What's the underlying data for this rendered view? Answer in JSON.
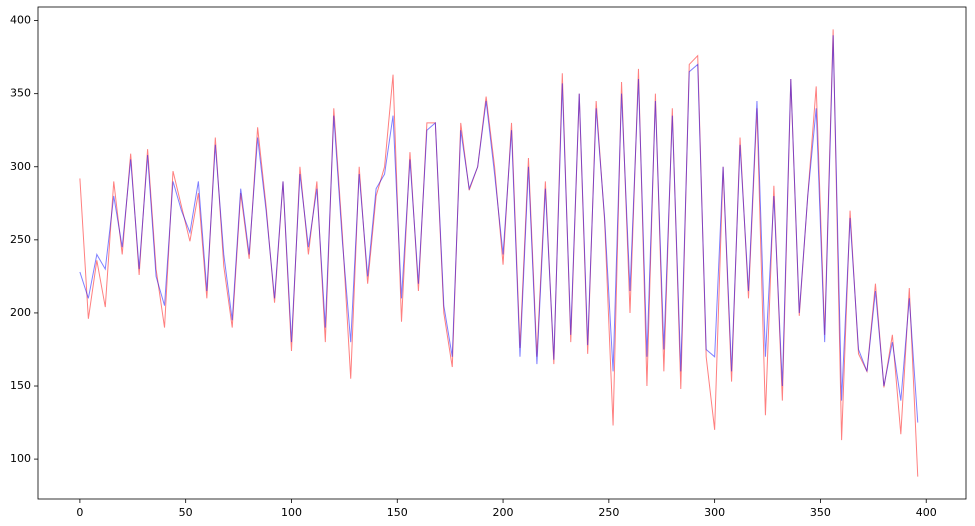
{
  "chart_data": {
    "type": "line",
    "x": [
      0,
      4,
      8,
      12,
      16,
      20,
      24,
      28,
      32,
      36,
      40,
      44,
      48,
      52,
      56,
      60,
      64,
      68,
      72,
      76,
      80,
      84,
      88,
      92,
      96,
      100,
      104,
      108,
      112,
      116,
      120,
      124,
      128,
      132,
      136,
      140,
      144,
      148,
      152,
      156,
      160,
      164,
      168,
      172,
      176,
      180,
      184,
      188,
      192,
      196,
      200,
      204,
      208,
      212,
      216,
      220,
      224,
      228,
      232,
      236,
      240,
      244,
      248,
      252,
      256,
      260,
      264,
      268,
      272,
      276,
      280,
      284,
      288,
      292,
      296,
      300,
      304,
      308,
      312,
      316,
      320,
      324,
      328,
      332,
      336,
      340,
      344,
      348,
      352,
      356,
      360,
      364,
      368,
      372,
      376,
      380,
      384,
      388,
      392,
      396
    ],
    "series": [
      {
        "color": "#ff0000",
        "alpha": 0.5,
        "values": [
          292,
          196,
          236,
          204,
          290,
          240,
          309,
          226,
          312,
          230,
          190,
          297,
          273,
          249,
          282,
          210,
          320,
          232,
          190,
          282,
          237,
          327,
          273,
          207,
          290,
          174,
          300,
          240,
          290,
          180,
          340,
          255,
          155,
          300,
          220,
          280,
          300,
          363,
          194,
          310,
          215,
          330,
          330,
          200,
          163,
          330,
          284,
          300,
          348,
          300,
          233,
          330,
          176,
          306,
          170,
          290,
          165,
          364,
          180,
          350,
          172,
          345,
          263,
          123,
          358,
          200,
          367,
          150,
          350,
          160,
          340,
          148,
          370,
          376,
          170,
          120,
          300,
          153,
          320,
          210,
          340,
          130,
          287,
          140,
          360,
          198,
          280,
          355,
          185,
          394,
          113,
          270,
          172,
          160,
          220,
          149,
          185,
          117,
          217,
          88
        ]
      },
      {
        "color": "#0000ff",
        "alpha": 0.5,
        "values": [
          228,
          210,
          240,
          230,
          280,
          245,
          305,
          230,
          308,
          225,
          205,
          290,
          270,
          255,
          290,
          215,
          315,
          240,
          195,
          285,
          240,
          320,
          270,
          210,
          290,
          180,
          295,
          245,
          285,
          190,
          335,
          250,
          180,
          295,
          225,
          285,
          295,
          335,
          210,
          305,
          220,
          325,
          330,
          205,
          170,
          325,
          285,
          300,
          345,
          295,
          240,
          325,
          170,
          300,
          165,
          285,
          168,
          357,
          185,
          350,
          178,
          340,
          265,
          160,
          350,
          215,
          360,
          170,
          345,
          175,
          335,
          160,
          365,
          370,
          175,
          170,
          300,
          160,
          315,
          215,
          345,
          170,
          280,
          150,
          360,
          200,
          280,
          340,
          180,
          390,
          140,
          265,
          175,
          160,
          215,
          150,
          180,
          140,
          210,
          125
        ]
      }
    ],
    "xlim": [
      -19.8,
      418.8
    ],
    "ylim": [
      72.7,
      409.3
    ],
    "xticks": [
      0,
      50,
      100,
      150,
      200,
      250,
      300,
      350,
      400
    ],
    "yticks": [
      100,
      150,
      200,
      250,
      300,
      350,
      400
    ]
  }
}
